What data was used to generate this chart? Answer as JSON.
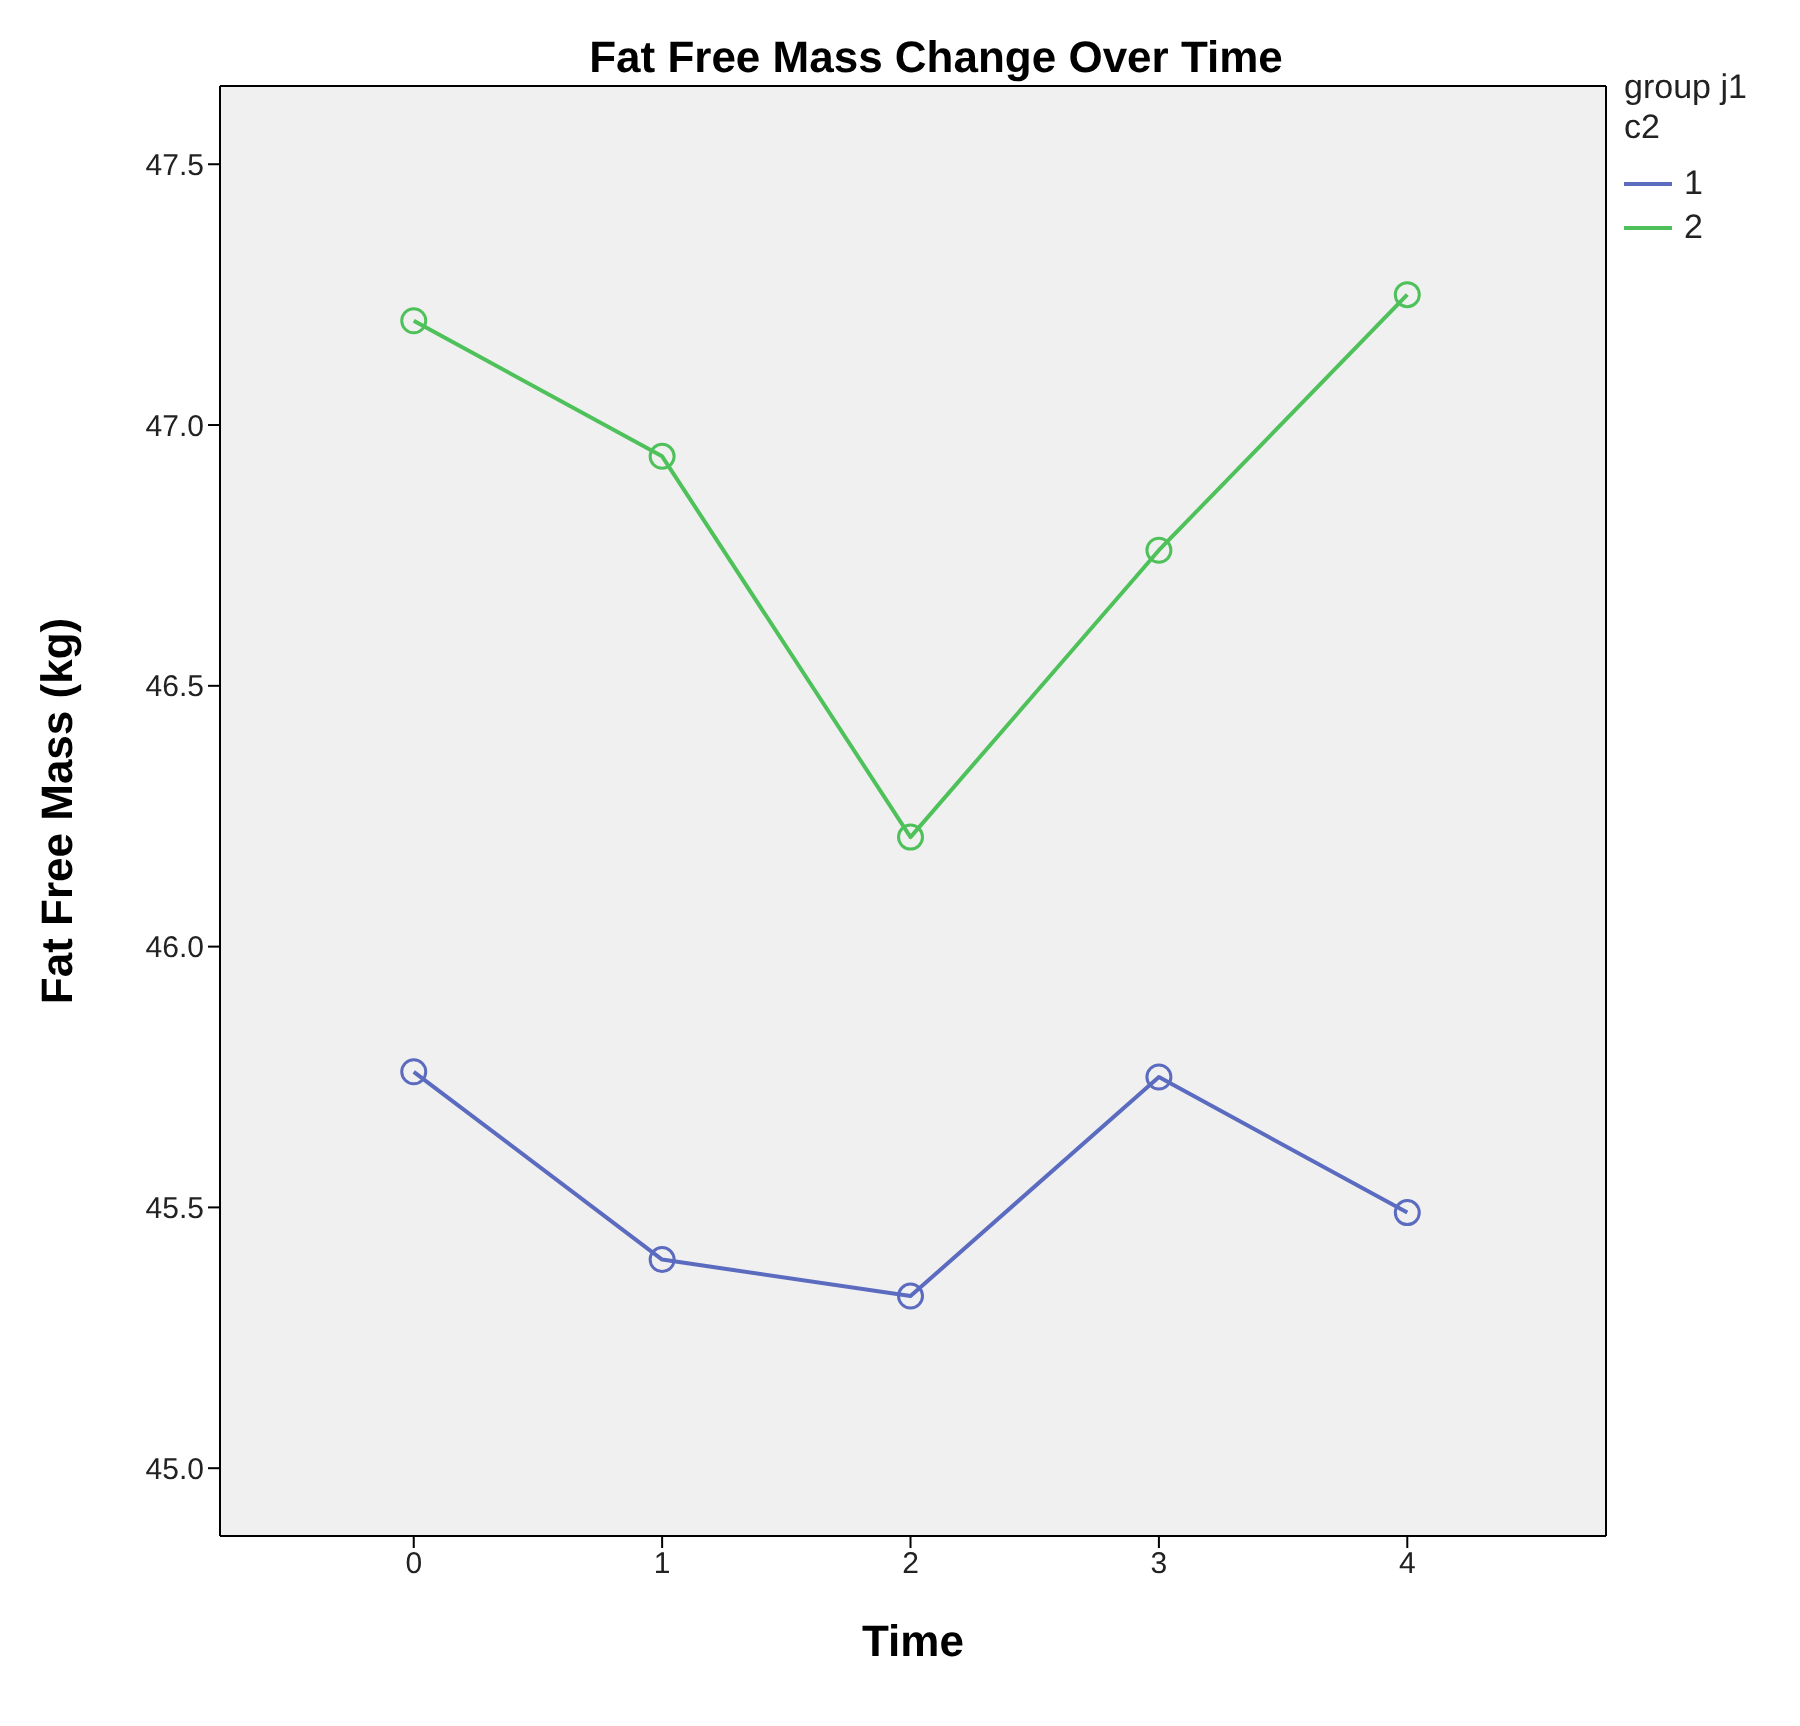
{
  "chart_data": {
    "type": "line",
    "title": "Fat Free Mass Change Over Time",
    "xlabel": "Time",
    "ylabel": "Fat Free Mass (kg)",
    "legend_title": "group j1 c2",
    "x": [
      0,
      1,
      2,
      3,
      4
    ],
    "series": [
      {
        "name": "1",
        "color": "#5b6bbf",
        "values": [
          45.76,
          45.4,
          45.33,
          45.75,
          45.49
        ]
      },
      {
        "name": "2",
        "color": "#4fc15a",
        "values": [
          47.2,
          46.94,
          46.21,
          46.76,
          47.25
        ]
      }
    ],
    "xlim": [
      -0.78,
      4.8
    ],
    "xticks": [
      0,
      1,
      2,
      3,
      4
    ],
    "ylim": [
      44.87,
      47.65
    ],
    "yticks": [
      {
        "value": 45,
        "label": "45.0"
      },
      {
        "value": 45.5,
        "label": "45.5"
      },
      {
        "value": 46,
        "label": "46.0"
      },
      {
        "value": 46.5,
        "label": "46.5"
      },
      {
        "value": 47,
        "label": "47.0"
      },
      {
        "value": 47.5,
        "label": "47.5"
      }
    ],
    "legend": "top right",
    "marker": "circle",
    "line_style": "solid"
  }
}
